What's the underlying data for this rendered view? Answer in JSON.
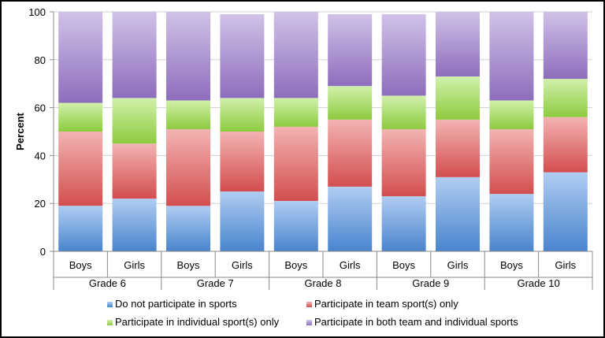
{
  "chart_data": {
    "type": "bar",
    "stacked": true,
    "ylabel": "Percent",
    "ylim": [
      0,
      100
    ],
    "yticks": [
      0,
      20,
      40,
      60,
      80,
      100
    ],
    "grid": "horizontal",
    "legend_position": "bottom",
    "groups": [
      "Grade 6",
      "Grade 7",
      "Grade 8",
      "Grade 9",
      "Grade 10"
    ],
    "categories": [
      "Boys",
      "Girls",
      "Boys",
      "Girls",
      "Boys",
      "Girls",
      "Boys",
      "Girls",
      "Boys",
      "Girls"
    ],
    "series": [
      {
        "name": "Do not participate in sports",
        "color": "#4f90e0",
        "values": [
          19,
          22,
          19,
          25,
          21,
          27,
          23,
          31,
          24,
          33
        ]
      },
      {
        "name": "Participate in team sport(s) only",
        "color": "#e55555",
        "values": [
          31,
          23,
          32,
          25,
          31,
          28,
          28,
          24,
          27,
          23
        ]
      },
      {
        "name": "Participate in individual sport(s) only",
        "color": "#99dd44",
        "values": [
          12,
          19,
          12,
          14,
          12,
          14,
          14,
          18,
          12,
          16
        ]
      },
      {
        "name": "Participate in both team and individual sports",
        "color": "#9977cc",
        "values": [
          38,
          36,
          37,
          35,
          36,
          30,
          34,
          27,
          37,
          28
        ]
      }
    ]
  }
}
